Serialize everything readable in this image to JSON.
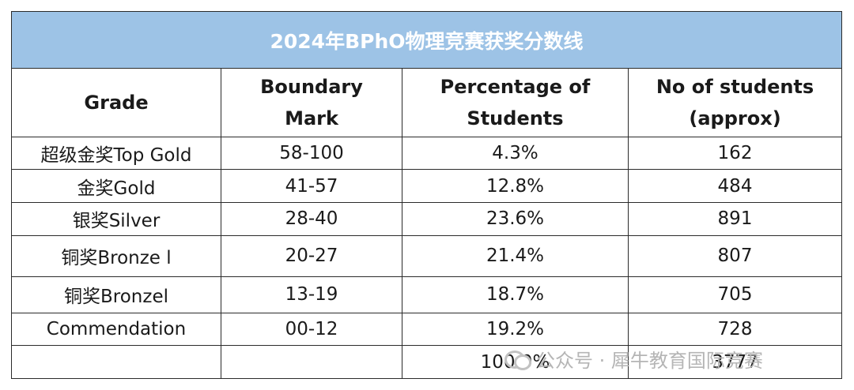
{
  "title": "2024年BPhO物理竞赛获奖分数线",
  "headers": {
    "grade": "Grade",
    "boundary_line1": "Boundary",
    "boundary_line2": "Mark",
    "percentage_line1": "Percentage of",
    "percentage_line2": "Students",
    "students_line1": "No of students",
    "students_line2": "(approx)"
  },
  "rows": [
    {
      "grade": "超级金奖Top Gold",
      "boundary": "58-100",
      "percentage": "4.3%",
      "students": "162"
    },
    {
      "grade": "金奖Gold",
      "boundary": "41-57",
      "percentage": "12.8%",
      "students": "484"
    },
    {
      "grade": "银奖Silver",
      "boundary": "28-40",
      "percentage": "23.6%",
      "students": "891"
    },
    {
      "grade": "铜奖Bronze l",
      "boundary": "20-27",
      "percentage": "21.4%",
      "students": "807"
    },
    {
      "grade": "铜奖Bronzel",
      "boundary": "13-19",
      "percentage": "18.7%",
      "students": "705"
    },
    {
      "grade": "Commendation",
      "boundary": "00-12",
      "percentage": "19.2%",
      "students": "728"
    }
  ],
  "totals": {
    "grade": "",
    "boundary": "",
    "percentage": "100.0%",
    "students": "3777"
  },
  "watermark": {
    "text": "公众号 · 犀牛教育国际竞赛",
    "icon": "wechat-icon"
  },
  "colors": {
    "title_background": "#9dc3e6",
    "title_text": "#ffffff",
    "border": "#2b2b2b"
  }
}
